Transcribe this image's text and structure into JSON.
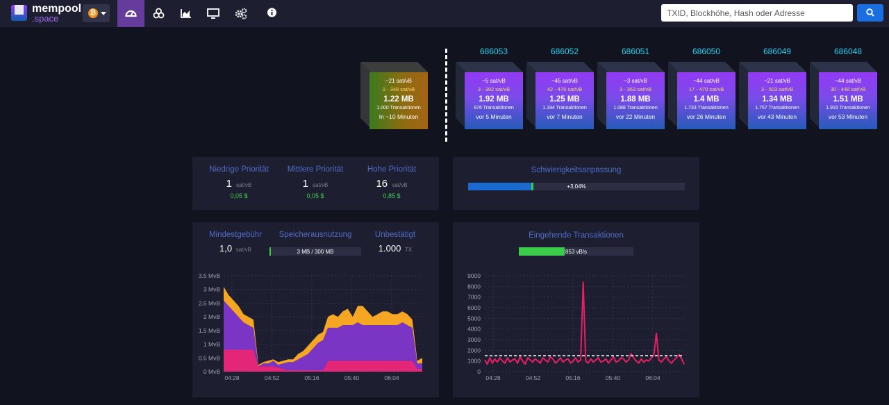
{
  "nav": {
    "logo_main": "mempool",
    "logo_sub": ".space",
    "network_symbol": "₿",
    "search_placeholder": "TXID, Blockhöhe, Hash oder Adresse",
    "items": [
      "dashboard-icon",
      "mining-icon",
      "graphs-icon",
      "tv-icon",
      "tools-icon",
      "info-icon"
    ]
  },
  "pending_block": {
    "fee": "~21 sat/vB",
    "range": "1 - 348 sat/vB",
    "size": "1.22 MB",
    "txs": "1.000 Transaktionen",
    "time": "In ~10 Minuten"
  },
  "blocks": [
    {
      "height": "686053",
      "fee": "~5 sat/vB",
      "range": "3 - 392 sat/vB",
      "size": "1.92 MB",
      "txs": "976 Transaktionen",
      "time": "vor 5 Minuten"
    },
    {
      "height": "686052",
      "fee": "~45 sat/vB",
      "range": "42 - 475 sat/vB",
      "size": "1.25 MB",
      "txs": "1.194 Transaktionen",
      "time": "vor 7 Minuten"
    },
    {
      "height": "686051",
      "fee": "~3 sat/vB",
      "range": "3 - 363 sat/vB",
      "size": "1.88 MB",
      "txs": "1.088 Transaktionen",
      "time": "vor 22 Minuten"
    },
    {
      "height": "686050",
      "fee": "~44 sat/vB",
      "range": "17 - 470 sat/vB",
      "size": "1.4 MB",
      "txs": "1.733 Transaktionen",
      "time": "vor 26 Minuten"
    },
    {
      "height": "686049",
      "fee": "~21 sat/vB",
      "range": "3 - 503 sat/vB",
      "size": "1.34 MB",
      "txs": "1.757 Transaktionen",
      "time": "vor 43 Minuten"
    },
    {
      "height": "686048",
      "fee": "~44 sat/vB",
      "range": "30 - 448 sat/vB",
      "size": "1.51 MB",
      "txs": "1.916 Transaktionen",
      "time": "vor 53 Minuten"
    }
  ],
  "fees": [
    {
      "label": "Niedrige Priorität",
      "value": "1",
      "unit": "sat/vB",
      "usd": "0,05 $"
    },
    {
      "label": "Mittlere Priorität",
      "value": "1",
      "unit": "sat/vB",
      "usd": "0,05 $"
    },
    {
      "label": "Hohe Priorität",
      "value": "16",
      "unit": "sat/vB",
      "usd": "0,85 $"
    }
  ],
  "difficulty": {
    "title": "Schwierigkeitsanpassung",
    "change": "+3,04%",
    "progress": 0.3
  },
  "mempool_info": {
    "min_fee_label": "Mindestgebühr",
    "min_fee_value": "1,0",
    "min_fee_unit": "sat/vB",
    "usage_label": "Speicherausnutzung",
    "usage_text": "3 MB / 300 MB",
    "usage_ratio": 0.01,
    "unconfirmed_label": "Unbestätigt",
    "unconfirmed_value": "1.000",
    "unconfirmed_unit": "TX"
  },
  "incoming": {
    "title": "Eingehende Transaktionen",
    "rate_text": "853 vB/s",
    "rate_ratio": 0.4
  },
  "colors": {
    "accent": "#653b9c",
    "block_top": "#9339f4",
    "block_bottom": "#105fb0",
    "fee_green": "#3bcc49",
    "label_blue": "#4f6cc5",
    "height_cyan": "#2bd0f1",
    "tx_line": "#e91e63"
  },
  "chart_data": [
    {
      "type": "area",
      "title": "",
      "ylabel": "",
      "y_ticks": [
        "0 MvB",
        "0.5 MvB",
        "1 MvB",
        "1.5 MvB",
        "2 MvB",
        "2.5 MvB",
        "3 MvB",
        "3.5 MvB"
      ],
      "x_ticks": [
        "04:28",
        "04:52",
        "05:16",
        "05:40",
        "06:04"
      ],
      "ylim": [
        0,
        3.5
      ],
      "x": [
        0,
        1,
        2,
        3,
        4,
        5,
        6,
        7,
        8,
        9,
        10,
        11,
        12,
        13,
        14,
        15,
        16,
        17,
        18,
        19,
        20,
        21,
        22,
        23,
        24,
        25,
        26,
        27,
        28,
        29,
        30,
        31,
        32,
        33,
        34,
        35,
        36,
        37,
        38,
        39,
        40
      ],
      "series": [
        {
          "values": [
            0.8,
            0.8,
            0.8,
            0.8,
            0.8,
            0.8,
            0.8,
            0.2,
            0.2,
            0.2,
            0.2,
            0.15,
            0.1,
            0.05,
            0.05,
            0.05,
            0.05,
            0.05,
            0.05,
            0.05,
            0.05,
            0.4,
            0.4,
            0.4,
            0.4,
            0.4,
            0.4,
            0.4,
            0.4,
            0.4,
            0.4,
            0.4,
            0.4,
            0.4,
            0.4,
            0.4,
            0.4,
            0.4,
            0.4,
            0.1,
            0.1
          ]
        },
        {
          "values": [
            1.8,
            1.6,
            1.4,
            1.2,
            1.0,
            0.9,
            0.8,
            0.0,
            0.1,
            0.1,
            0.2,
            0.1,
            0.2,
            0.3,
            0.3,
            0.4,
            0.5,
            0.6,
            0.8,
            1.0,
            1.1,
            1.2,
            1.2,
            1.2,
            1.3,
            1.3,
            1.3,
            1.4,
            1.3,
            1.3,
            1.3,
            1.3,
            1.3,
            1.3,
            1.3,
            1.3,
            1.4,
            1.3,
            1.2,
            0.2,
            0.2
          ]
        },
        {
          "values": [
            0.5,
            0.4,
            0.4,
            0.4,
            0.3,
            0.3,
            0.3,
            0.05,
            0.05,
            0.1,
            0.05,
            0.1,
            0.1,
            0.1,
            0.1,
            0.2,
            0.2,
            0.3,
            0.3,
            0.3,
            0.3,
            0.4,
            0.5,
            0.4,
            0.5,
            0.6,
            0.3,
            0.6,
            0.7,
            0.5,
            0.3,
            0.4,
            0.5,
            0.5,
            0.4,
            0.4,
            0.4,
            0.4,
            0.3,
            0.1,
            0.2
          ]
        }
      ]
    },
    {
      "type": "line",
      "title": "",
      "y_ticks": [
        "0",
        "1000",
        "2000",
        "3000",
        "4000",
        "5000",
        "6000",
        "7000",
        "8000",
        "9000"
      ],
      "x_ticks": [
        "04:28",
        "04:52",
        "05:16",
        "05:40",
        "06:04"
      ],
      "ylim": [
        0,
        9000
      ],
      "reference_line": 1500,
      "x": [
        0,
        1,
        2,
        3,
        4,
        5,
        6,
        7,
        8,
        9,
        10,
        11,
        12,
        13,
        14,
        15,
        16,
        17,
        18,
        19,
        20,
        21,
        22,
        23,
        24,
        25,
        26,
        27,
        28,
        29,
        30,
        31,
        32,
        33,
        34,
        35,
        36,
        37,
        38,
        39,
        40,
        41,
        42,
        43,
        44,
        45,
        46,
        47,
        48,
        49,
        50,
        51,
        52,
        53,
        54,
        55,
        56,
        57,
        58,
        59,
        60,
        61,
        62,
        63,
        64,
        65,
        66,
        67,
        68,
        69,
        70,
        71,
        72,
        73,
        74,
        75,
        76,
        77,
        78,
        79
      ],
      "values": [
        1100,
        700,
        1300,
        800,
        1200,
        900,
        1300,
        1000,
        800,
        1300,
        900,
        1100,
        1200,
        800,
        1400,
        1000,
        700,
        1300,
        1100,
        900,
        1200,
        1000,
        800,
        1300,
        1100,
        900,
        1400,
        1200,
        800,
        1000,
        1300,
        900,
        1100,
        1200,
        800,
        1000,
        1300,
        900,
        1100,
        8400,
        1000,
        800,
        1200,
        900,
        1100,
        1300,
        900,
        1000,
        1200,
        800,
        1100,
        1400,
        900,
        1000,
        1300,
        1200,
        900,
        1100,
        1700,
        1300,
        1000,
        800,
        1200,
        900,
        1100,
        1000,
        1300,
        1500,
        3600,
        1100,
        900,
        1200,
        1400,
        1000,
        800,
        1100,
        1300,
        1600,
        1200,
        700
      ]
    }
  ]
}
